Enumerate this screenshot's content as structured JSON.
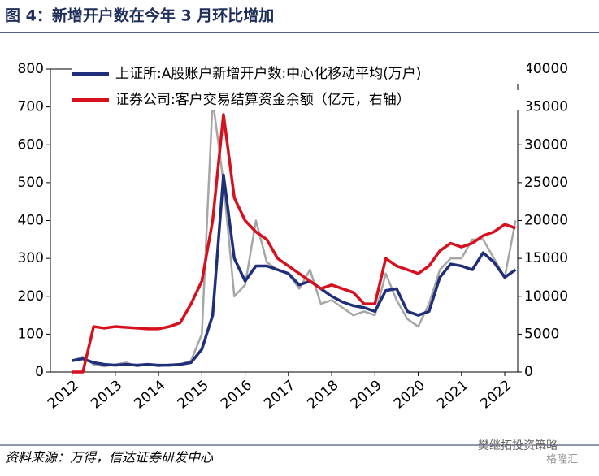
{
  "chart_data": {
    "type": "line",
    "title": "图 4：新增开户数在今年 3 月环比增加",
    "source": "资料来源：万得，信达证券研发中心",
    "annotations": [
      "樊继拓投资策略",
      "格隆汇"
    ],
    "x": [
      2012,
      2012.25,
      2012.5,
      2012.75,
      2013,
      2013.25,
      2013.5,
      2013.75,
      2014,
      2014.25,
      2014.5,
      2014.75,
      2015,
      2015.25,
      2015.5,
      2015.75,
      2016,
      2016.25,
      2016.5,
      2016.75,
      2017,
      2017.25,
      2017.5,
      2017.75,
      2018,
      2018.25,
      2018.5,
      2018.75,
      2019,
      2019.25,
      2019.5,
      2019.75,
      2020,
      2020.25,
      2020.5,
      2020.75,
      2021,
      2021.25,
      2021.5,
      2021.75,
      2022,
      2022.25
    ],
    "xlim": [
      2011.5,
      2022.3
    ],
    "xticks": [
      2012,
      2013,
      2014,
      2015,
      2016,
      2017,
      2018,
      2019,
      2020,
      2021,
      2022
    ],
    "ylim": [
      0,
      800
    ],
    "yticks": [
      0,
      100,
      200,
      300,
      400,
      500,
      600,
      700,
      800
    ],
    "y2lim": [
      0,
      40000
    ],
    "y2ticks": [
      0,
      5000,
      10000,
      15000,
      20000,
      25000,
      30000,
      35000,
      40000
    ],
    "legend": "upper left",
    "series": [
      {
        "color": "#a6a6a6",
        "values": [
          30,
          40,
          20,
          15,
          20,
          25,
          15,
          20,
          15,
          20,
          20,
          30,
          100,
          720,
          500,
          200,
          230,
          400,
          290,
          270,
          260,
          220,
          270,
          180,
          190,
          170,
          150,
          160,
          150,
          260,
          190,
          140,
          120,
          180,
          270,
          300,
          300,
          350,
          350,
          300,
          250,
          400
        ]
      },
      {
        "name": "上证所:A股账户新增开户数:中心化移动平均(万户)",
        "color": "#1f2f7a",
        "values": [
          30,
          35,
          25,
          20,
          18,
          20,
          18,
          20,
          18,
          18,
          20,
          25,
          60,
          150,
          520,
          300,
          240,
          280,
          280,
          270,
          260,
          230,
          240,
          220,
          200,
          185,
          175,
          170,
          160,
          215,
          220,
          160,
          150,
          160,
          250,
          285,
          280,
          270,
          315,
          290,
          250,
          270
        ]
      },
      {
        "name": "证券公司:客户交易结算资金余额（亿元，右轴）",
        "color": "#d7101e",
        "axis": "y2",
        "values": [
          0,
          0,
          6000,
          5800,
          6000,
          5900,
          5800,
          5700,
          5700,
          6000,
          6500,
          9000,
          12000,
          20000,
          34000,
          23000,
          20000,
          18500,
          17500,
          15000,
          14000,
          13000,
          12000,
          11000,
          11500,
          11000,
          10500,
          9000,
          9000,
          15000,
          14000,
          13500,
          13000,
          14000,
          16000,
          17000,
          16500,
          17000,
          18000,
          18500,
          19500,
          19000
        ]
      }
    ]
  }
}
